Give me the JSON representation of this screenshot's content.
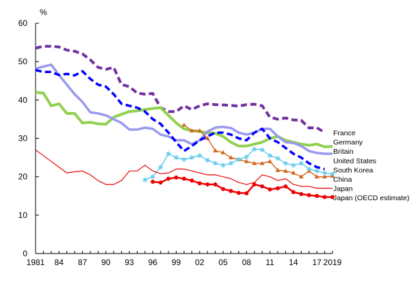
{
  "chart_data": {
    "type": "line",
    "title": "",
    "xlabel": "",
    "ylabel": "%",
    "xlim": [
      1981,
      2019
    ],
    "ylim": [
      0,
      60
    ],
    "grid": false,
    "legend_placement": "right",
    "y_ticks": [
      0,
      10,
      20,
      30,
      40,
      50,
      60
    ],
    "x_ticks": [
      {
        "value": 1981,
        "label": "1981"
      },
      {
        "value": 1984,
        "label": "84"
      },
      {
        "value": 1987,
        "label": "87"
      },
      {
        "value": 1990,
        "label": "90"
      },
      {
        "value": 1993,
        "label": "93"
      },
      {
        "value": 1996,
        "label": "96"
      },
      {
        "value": 1999,
        "label": "99"
      },
      {
        "value": 2002,
        "label": "02"
      },
      {
        "value": 2005,
        "label": "05"
      },
      {
        "value": 2008,
        "label": "08"
      },
      {
        "value": 2011,
        "label": "11"
      },
      {
        "value": 2014,
        "label": "14"
      },
      {
        "value": 2017,
        "label": "17"
      },
      {
        "value": 2019,
        "label": "2019"
      }
    ],
    "series": [
      {
        "name": "France",
        "color": "#7030a0",
        "style": "dash",
        "width": 4,
        "marker": "none",
        "points": [
          [
            1981,
            53.5
          ],
          [
            1982,
            54
          ],
          [
            1983,
            54
          ],
          [
            1984,
            53.8
          ],
          [
            1985,
            53
          ],
          [
            1986,
            52.7
          ],
          [
            1987,
            52
          ],
          [
            1988,
            50.5
          ],
          [
            1989,
            48.5
          ],
          [
            1990,
            48
          ],
          [
            1991,
            48.5
          ],
          [
            1992,
            44
          ],
          [
            1993,
            43.5
          ],
          [
            1994,
            41.8
          ],
          [
            1995,
            41.5
          ],
          [
            1996,
            41.7
          ],
          [
            1997,
            38
          ],
          [
            1998,
            37
          ],
          [
            1999,
            37
          ],
          [
            2000,
            38.5
          ],
          [
            2001,
            37.5
          ],
          [
            2002,
            38.5
          ],
          [
            2003,
            39
          ],
          [
            2004,
            38.8
          ],
          [
            2005,
            38.7
          ],
          [
            2006,
            38.6
          ],
          [
            2007,
            38.4
          ],
          [
            2008,
            38.8
          ],
          [
            2009,
            38.9
          ],
          [
            2010,
            38.5
          ],
          [
            2011,
            35.5
          ],
          [
            2012,
            35
          ],
          [
            2013,
            35.3
          ],
          [
            2014,
            34.8
          ],
          [
            2015,
            34.7
          ],
          [
            2016,
            32.7
          ],
          [
            2017,
            32.8
          ],
          [
            2018,
            31.5
          ]
        ]
      },
      {
        "name": "Germany",
        "color": "#92d050",
        "style": "solid",
        "width": 4,
        "marker": "none",
        "points": [
          [
            1981,
            42
          ],
          [
            1982,
            41.8
          ],
          [
            1983,
            38.5
          ],
          [
            1984,
            39
          ],
          [
            1985,
            36.5
          ],
          [
            1986,
            36.5
          ],
          [
            1987,
            34
          ],
          [
            1988,
            34.2
          ],
          [
            1989,
            33.8
          ],
          [
            1990,
            33.7
          ],
          [
            1991,
            35.5
          ],
          [
            1992,
            36.3
          ],
          [
            1993,
            37
          ],
          [
            1994,
            37.2
          ],
          [
            1995,
            37.5
          ],
          [
            1996,
            37.8
          ],
          [
            1997,
            38
          ],
          [
            1998,
            36
          ],
          [
            1999,
            34
          ],
          [
            2000,
            32.5
          ],
          [
            2001,
            32
          ],
          [
            2002,
            31.8
          ],
          [
            2003,
            31.5
          ],
          [
            2004,
            31.3
          ],
          [
            2005,
            30.5
          ],
          [
            2006,
            29
          ],
          [
            2007,
            28
          ],
          [
            2008,
            28
          ],
          [
            2009,
            28.5
          ],
          [
            2010,
            29
          ],
          [
            2011,
            30
          ],
          [
            2012,
            30.5
          ],
          [
            2013,
            29.5
          ],
          [
            2014,
            29
          ],
          [
            2015,
            28.5
          ],
          [
            2016,
            28.2
          ],
          [
            2017,
            28.5
          ],
          [
            2018,
            27.8
          ],
          [
            2019,
            27.9
          ]
        ]
      },
      {
        "name": "Britain",
        "color": "#9999ee",
        "style": "solid",
        "width": 3.5,
        "marker": "none",
        "points": [
          [
            1981,
            48.2
          ],
          [
            1982,
            48.7
          ],
          [
            1983,
            49.2
          ],
          [
            1984,
            46.5
          ],
          [
            1985,
            44
          ],
          [
            1986,
            41.5
          ],
          [
            1987,
            39.5
          ],
          [
            1988,
            36.8
          ],
          [
            1989,
            36.5
          ],
          [
            1990,
            36
          ],
          [
            1991,
            35
          ],
          [
            1992,
            34
          ],
          [
            1993,
            32.3
          ],
          [
            1994,
            32.3
          ],
          [
            1995,
            32.8
          ],
          [
            1996,
            32.5
          ],
          [
            1997,
            31
          ],
          [
            1998,
            30.5
          ],
          [
            1999,
            29.5
          ],
          [
            2000,
            29.5
          ],
          [
            2001,
            28.5
          ],
          [
            2002,
            29.5
          ],
          [
            2003,
            31.8
          ],
          [
            2004,
            32.8
          ],
          [
            2005,
            33
          ],
          [
            2006,
            32.7
          ],
          [
            2007,
            31.5
          ],
          [
            2008,
            31
          ],
          [
            2009,
            31.5
          ],
          [
            2010,
            32.5
          ],
          [
            2011,
            32.5
          ],
          [
            2012,
            30.5
          ],
          [
            2013,
            29
          ],
          [
            2014,
            28.8
          ],
          [
            2015,
            28
          ],
          [
            2016,
            26.7
          ],
          [
            2017,
            26.2
          ],
          [
            2018,
            26
          ],
          [
            2019,
            26
          ]
        ]
      },
      {
        "name": "United States",
        "color": "#0000ff",
        "style": "dash",
        "width": 3.5,
        "marker": "none",
        "points": [
          [
            1981,
            47.8
          ],
          [
            1982,
            47.3
          ],
          [
            1983,
            47.3
          ],
          [
            1984,
            46.5
          ],
          [
            1985,
            46.8
          ],
          [
            1986,
            46.4
          ],
          [
            1987,
            47.5
          ],
          [
            1988,
            45.5
          ],
          [
            1989,
            44
          ],
          [
            1990,
            43.5
          ],
          [
            1991,
            41.5
          ],
          [
            1992,
            39
          ],
          [
            1993,
            38.5
          ],
          [
            1994,
            38
          ],
          [
            1995,
            37
          ],
          [
            1996,
            35
          ],
          [
            1997,
            33.8
          ],
          [
            1998,
            31.5
          ],
          [
            1999,
            29
          ],
          [
            2000,
            26.7
          ],
          [
            2001,
            28
          ],
          [
            2002,
            29.5
          ],
          [
            2003,
            30.5
          ],
          [
            2004,
            31.5
          ],
          [
            2005,
            31.5
          ],
          [
            2006,
            31
          ],
          [
            2007,
            30
          ],
          [
            2008,
            29.5
          ],
          [
            2009,
            31.5
          ],
          [
            2010,
            32.5
          ],
          [
            2011,
            30
          ],
          [
            2012,
            29
          ],
          [
            2013,
            27.5
          ],
          [
            2014,
            26
          ],
          [
            2015,
            25
          ],
          [
            2016,
            23.5
          ],
          [
            2017,
            22.5
          ],
          [
            2018,
            22
          ]
        ]
      },
      {
        "name": "South Korea",
        "color": "#d06820",
        "style": "solid",
        "width": 1.5,
        "marker": "triangle",
        "points": [
          [
            2000,
            33.5
          ],
          [
            2001,
            32
          ],
          [
            2002,
            32
          ],
          [
            2003,
            30
          ],
          [
            2004,
            26.8
          ],
          [
            2005,
            26.3
          ],
          [
            2006,
            25
          ],
          [
            2007,
            24.5
          ],
          [
            2008,
            24
          ],
          [
            2009,
            23.5
          ],
          [
            2010,
            23.5
          ],
          [
            2011,
            24
          ],
          [
            2012,
            21.7
          ],
          [
            2013,
            21.5
          ],
          [
            2014,
            21
          ],
          [
            2015,
            20
          ],
          [
            2016,
            21.5
          ],
          [
            2017,
            20
          ],
          [
            2018,
            20
          ],
          [
            2019,
            20.2
          ]
        ]
      },
      {
        "name": "China",
        "color": "#66ccee",
        "style": "solid",
        "width": 1.5,
        "marker": "star",
        "points": [
          [
            1995,
            19.2
          ],
          [
            1996,
            20
          ],
          [
            1997,
            22.5
          ],
          [
            1998,
            26
          ],
          [
            1999,
            25
          ],
          [
            2000,
            24.5
          ],
          [
            2001,
            25
          ],
          [
            2002,
            25.5
          ],
          [
            2003,
            24.3
          ],
          [
            2004,
            23.5
          ],
          [
            2005,
            23
          ],
          [
            2006,
            23.5
          ],
          [
            2007,
            24.5
          ],
          [
            2008,
            25.2
          ],
          [
            2009,
            27.2
          ],
          [
            2010,
            27
          ],
          [
            2011,
            25.5
          ],
          [
            2012,
            24.8
          ],
          [
            2013,
            23.5
          ],
          [
            2014,
            23
          ],
          [
            2015,
            23.5
          ],
          [
            2016,
            22
          ],
          [
            2017,
            21.5
          ],
          [
            2018,
            21
          ],
          [
            2019,
            20.7
          ]
        ]
      },
      {
        "name": "Japan",
        "color": "#ee0000",
        "style": "solid",
        "width": 1.2,
        "marker": "none",
        "points": [
          [
            1981,
            27
          ],
          [
            1982,
            25.5
          ],
          [
            1983,
            24
          ],
          [
            1984,
            22.5
          ],
          [
            1985,
            21
          ],
          [
            1986,
            21.3
          ],
          [
            1987,
            21.5
          ],
          [
            1988,
            20.5
          ],
          [
            1989,
            19
          ],
          [
            1990,
            18
          ],
          [
            1991,
            18
          ],
          [
            1992,
            19
          ],
          [
            1993,
            21.5
          ],
          [
            1994,
            21.5
          ],
          [
            1995,
            23
          ],
          [
            1996,
            21.5
          ],
          [
            1997,
            20.8
          ],
          [
            1998,
            21
          ],
          [
            1999,
            22
          ],
          [
            2000,
            22
          ],
          [
            2001,
            21.5
          ],
          [
            2002,
            21
          ],
          [
            2003,
            20.5
          ],
          [
            2004,
            20.5
          ],
          [
            2005,
            20
          ],
          [
            2006,
            19.5
          ],
          [
            2007,
            18.5
          ],
          [
            2008,
            18
          ],
          [
            2009,
            18.5
          ],
          [
            2010,
            20.5
          ],
          [
            2011,
            20
          ],
          [
            2012,
            19
          ],
          [
            2013,
            19.5
          ],
          [
            2014,
            18
          ],
          [
            2015,
            17.5
          ],
          [
            2016,
            17.5
          ],
          [
            2017,
            17
          ],
          [
            2018,
            17
          ],
          [
            2019,
            17
          ]
        ]
      },
      {
        "name": "Japan (OECD estimate)",
        "color": "#ee0000",
        "style": "solid",
        "width": 2.5,
        "marker": "circle",
        "points": [
          [
            1996,
            18.7
          ],
          [
            1997,
            18.5
          ],
          [
            1998,
            19.5
          ],
          [
            1999,
            19.8
          ],
          [
            2000,
            19.5
          ],
          [
            2001,
            19
          ],
          [
            2002,
            18.3
          ],
          [
            2003,
            18
          ],
          [
            2004,
            18
          ],
          [
            2005,
            16.8
          ],
          [
            2006,
            16.3
          ],
          [
            2007,
            15.8
          ],
          [
            2008,
            15.7
          ],
          [
            2009,
            18
          ],
          [
            2010,
            17.5
          ],
          [
            2011,
            16.7
          ],
          [
            2012,
            17
          ],
          [
            2013,
            17.5
          ],
          [
            2014,
            16
          ],
          [
            2015,
            15.5
          ],
          [
            2016,
            15.2
          ],
          [
            2017,
            15
          ],
          [
            2018,
            14.7
          ],
          [
            2019,
            14.7
          ]
        ]
      }
    ]
  }
}
